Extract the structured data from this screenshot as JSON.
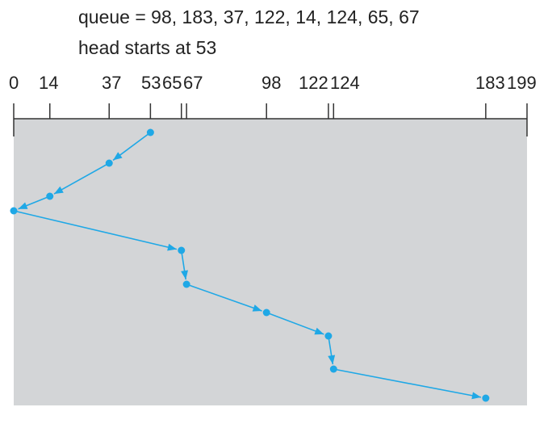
{
  "caption": {
    "queue_line": "queue = 98, 183, 37, 122, 14, 124, 65, 67",
    "head_line": "head starts at 53"
  },
  "chart_data": {
    "type": "line",
    "axis_ticks": [
      0,
      14,
      37,
      53,
      65,
      67,
      98,
      122,
      124,
      183,
      199
    ],
    "axis_range": [
      0,
      199
    ],
    "service_order": [
      53,
      37,
      14,
      0,
      65,
      67,
      98,
      122,
      124,
      183
    ],
    "colors": {
      "path": "#1fa8e6",
      "background": "#d3d5d7",
      "axis": "#333333"
    }
  }
}
